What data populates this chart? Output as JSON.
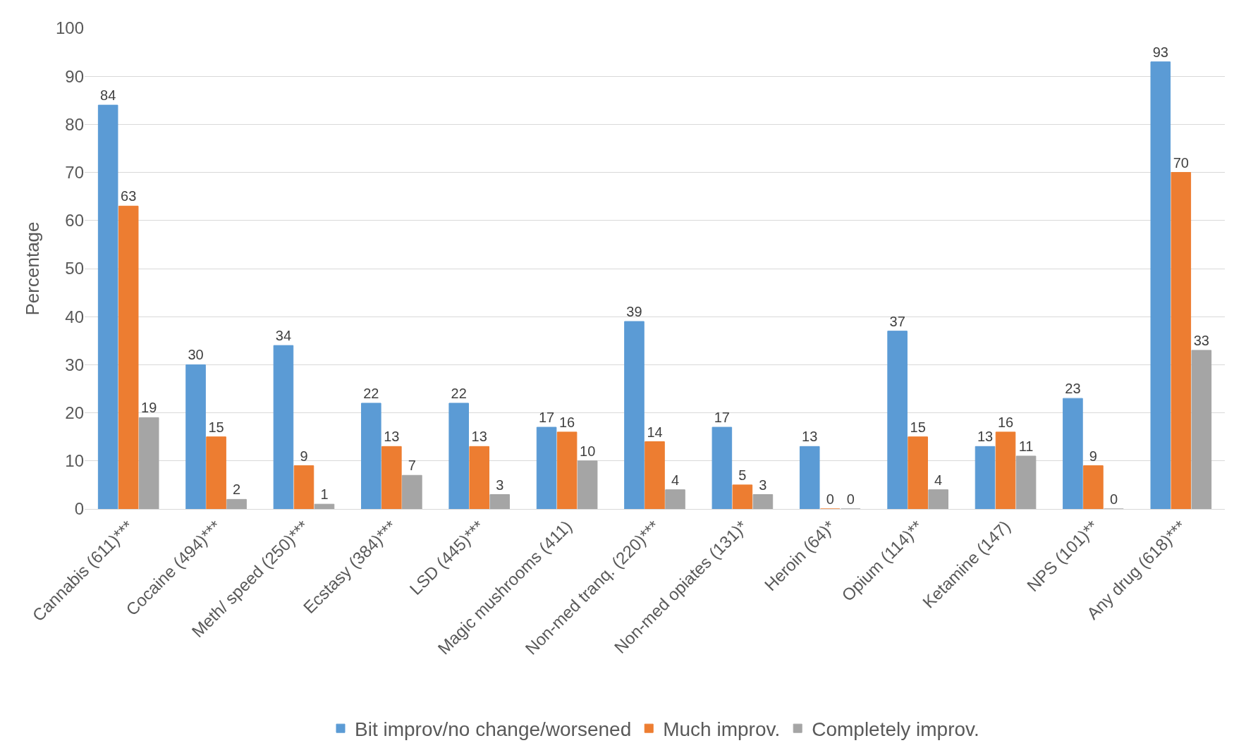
{
  "chart_data": {
    "type": "bar",
    "ylabel": "Percentage",
    "categories": [
      "Cannabis (611)***",
      "Cocaine (494)***",
      "Meth/ speed (250)***",
      "Ecstasy (384)***",
      "LSD (445)***",
      "Magic mushrooms (411)",
      "Non-med tranq. (220)***",
      "Non-med opiates (131)*",
      "Heroin (64)*",
      "Opium (114)**",
      "Ketamine (147)",
      "NPS (101)**",
      "Any drug (618)***"
    ],
    "series": [
      {
        "name": "Bit improv/no change/worsened",
        "color": "#5b9bd5",
        "values": [
          84,
          30,
          34,
          22,
          22,
          17,
          39,
          17,
          13,
          37,
          13,
          23,
          93
        ]
      },
      {
        "name": "Much improv.",
        "color": "#ed7d31",
        "values": [
          63,
          15,
          9,
          13,
          13,
          16,
          14,
          5,
          0,
          15,
          16,
          9,
          70
        ]
      },
      {
        "name": "Completely improv.",
        "color": "#a5a5a5",
        "values": [
          19,
          2,
          1,
          7,
          3,
          10,
          4,
          3,
          0,
          4,
          11,
          0,
          33
        ]
      }
    ],
    "ylim": [
      0,
      100
    ],
    "yticks": [
      0,
      10,
      20,
      30,
      40,
      50,
      60,
      70,
      80,
      90,
      100
    ],
    "grid": "y",
    "legend": "bottom",
    "data_labels": true
  }
}
